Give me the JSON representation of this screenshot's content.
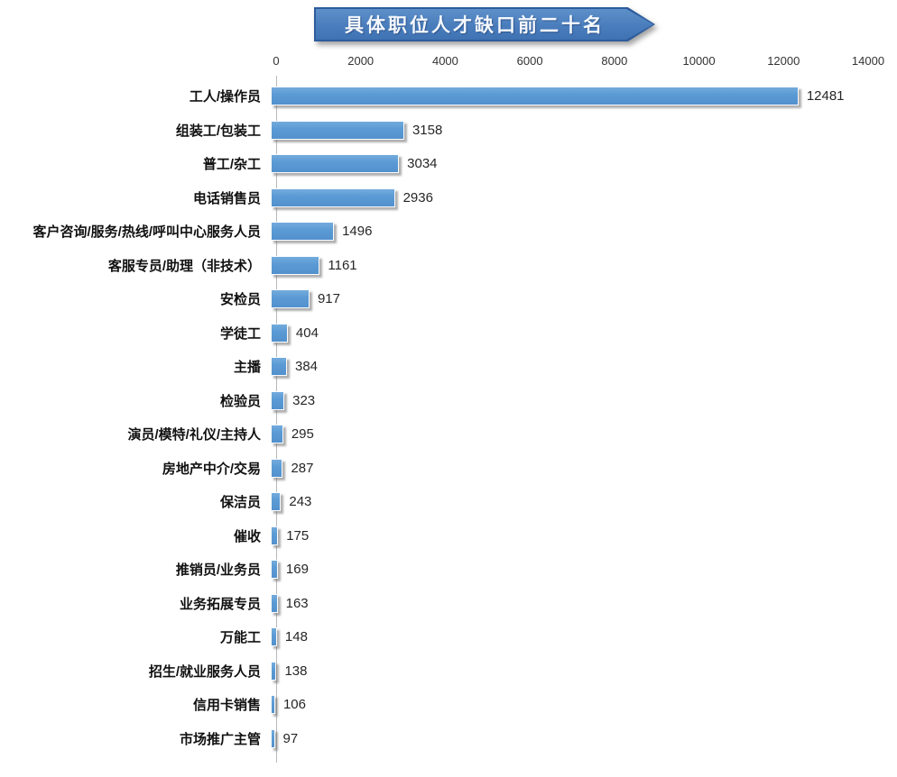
{
  "title": {
    "text": "具体职位人才缺口前二十名"
  },
  "colors": {
    "bar": "#5b9bd5",
    "banner_fill": "#4a7dbc",
    "banner_border": "#2d5c9c",
    "axis_line": "#b9b9b9",
    "label_text": "#111111",
    "value_text": "#262626"
  },
  "chart_data": {
    "type": "bar",
    "orientation": "horizontal",
    "title": "具体职位人才缺口前二十名",
    "categories": [
      "工人/操作员",
      "组装工/包装工",
      "普工/杂工",
      "电话销售员",
      "客户咨询/服务/热线/呼叫中心服务人员",
      "客服专员/助理（非技术）",
      "安检员",
      "学徒工",
      "主播",
      "检验员",
      "演员/模特/礼仪/主持人",
      "房地产中介/交易",
      "保洁员",
      "催收",
      "推销员/业务员",
      "业务拓展专员",
      "万能工",
      "招生/就业服务人员",
      "信用卡销售",
      "市场推广主管"
    ],
    "values": [
      12481,
      3158,
      3034,
      2936,
      1496,
      1161,
      917,
      404,
      384,
      323,
      295,
      287,
      243,
      175,
      169,
      163,
      148,
      138,
      106,
      97
    ],
    "xlabel": "",
    "ylabel": "",
    "xlim": [
      0,
      14000
    ],
    "xticks": [
      0,
      2000,
      4000,
      6000,
      8000,
      10000,
      12000,
      14000
    ],
    "grid": false,
    "legend": false,
    "value_labels_shown": true,
    "axis_position": "top"
  }
}
